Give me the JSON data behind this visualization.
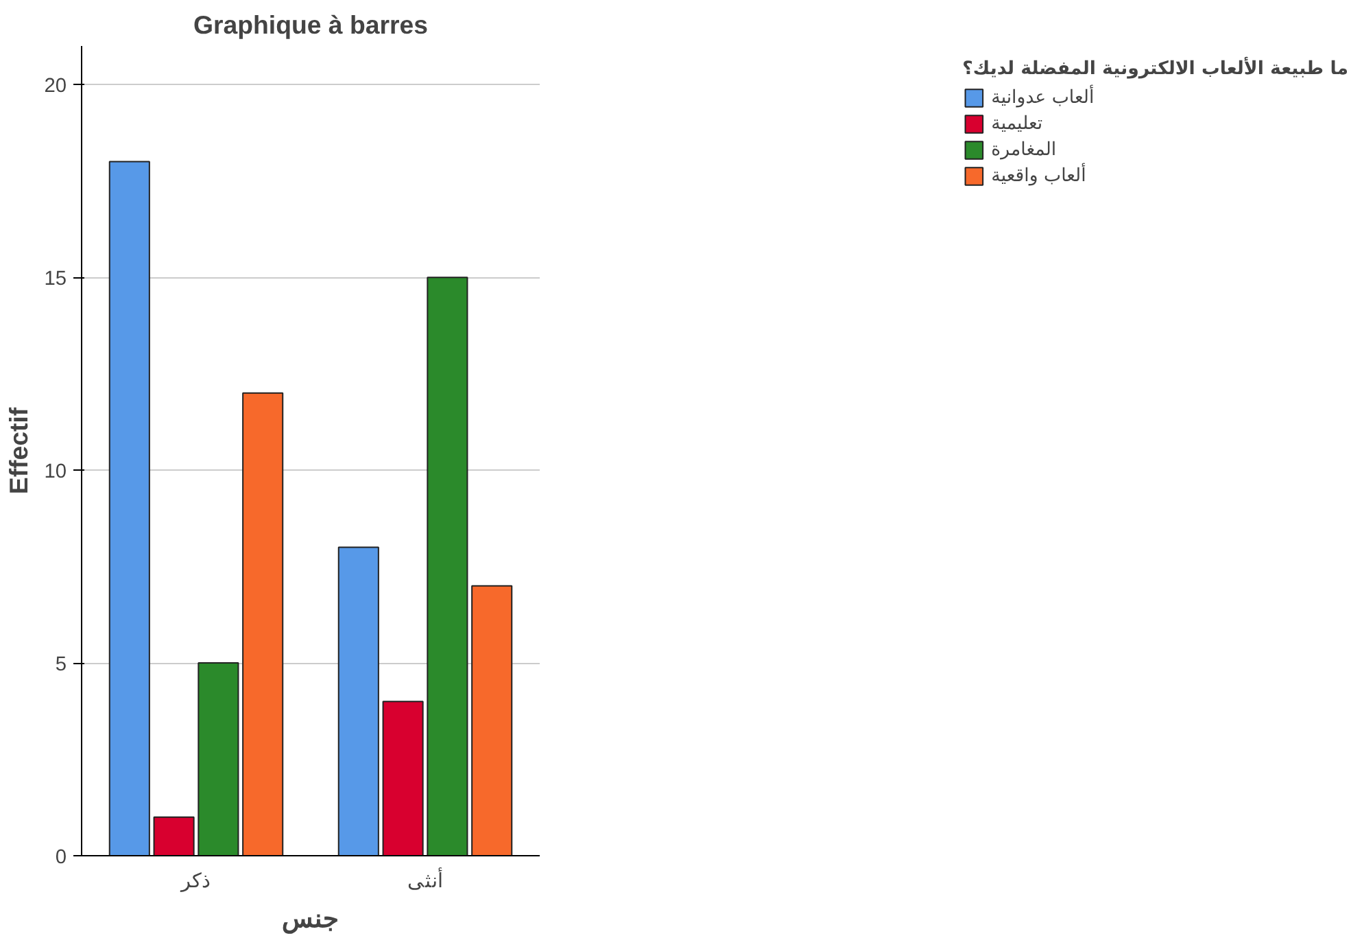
{
  "chart_data": {
    "type": "bar",
    "title": "Graphique à barres",
    "xlabel": "جنس",
    "ylabel": "Effectif",
    "legend_title": "ما طبيعة الألعاب الالكترونية المفضلة لديك؟",
    "categories": [
      "ذكر",
      "أنثى"
    ],
    "series": [
      {
        "name": "ألعاب عدوانية",
        "color": "#5799e8",
        "values": [
          18,
          8
        ]
      },
      {
        "name": "تعليمية",
        "color": "#d8002f",
        "values": [
          1,
          4
        ]
      },
      {
        "name": "المغامرة",
        "color": "#2b8a2b",
        "values": [
          5,
          15
        ]
      },
      {
        "name": "ألعاب واقعية",
        "color": "#f7692b",
        "values": [
          12,
          7
        ]
      }
    ],
    "ylim": [
      0,
      21
    ],
    "yticks": [
      0,
      5,
      10,
      15,
      20
    ],
    "grid": "y",
    "legend": "right"
  }
}
